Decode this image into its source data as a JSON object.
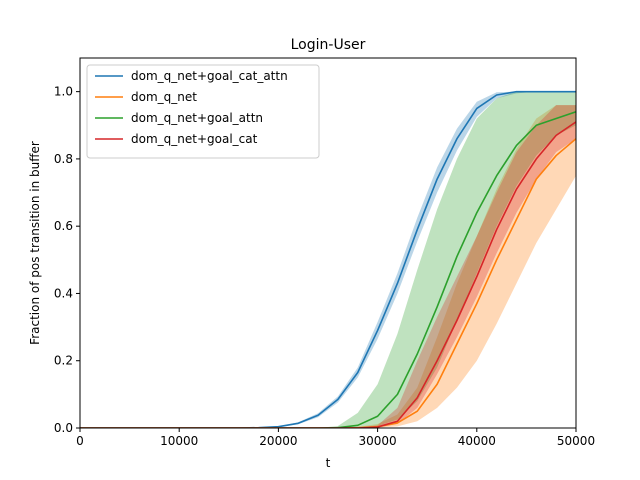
{
  "chart_data": {
    "type": "line",
    "title": "Login-User",
    "xlabel": "t",
    "ylabel": "Fraction of pos transition in buffer",
    "xlim": [
      0,
      50000
    ],
    "ylim": [
      0,
      1.1
    ],
    "xticks": [
      0,
      10000,
      20000,
      30000,
      40000,
      50000
    ],
    "xtick_labels": [
      "0",
      "10000",
      "20000",
      "30000",
      "40000",
      "50000"
    ],
    "yticks": [
      0.0,
      0.2,
      0.4,
      0.6,
      0.8,
      1.0
    ],
    "ytick_labels": [
      "0.0",
      "0.2",
      "0.4",
      "0.6",
      "0.8",
      "1.0"
    ],
    "grid": false,
    "legend_position": "top-left",
    "x": [
      0,
      2000,
      4000,
      6000,
      8000,
      10000,
      12000,
      14000,
      16000,
      18000,
      20000,
      22000,
      24000,
      26000,
      28000,
      30000,
      32000,
      34000,
      36000,
      38000,
      40000,
      42000,
      44000,
      46000,
      48000,
      50000
    ],
    "series": [
      {
        "name": "dom_q_net+goal_cat_attn",
        "color": "#1f77b4",
        "values": [
          0,
          0,
          0,
          0,
          0,
          0,
          0,
          0,
          0,
          0.001,
          0.004,
          0.014,
          0.038,
          0.085,
          0.165,
          0.29,
          0.43,
          0.59,
          0.74,
          0.86,
          0.95,
          0.99,
          1.0,
          1.0,
          1.0,
          1.0
        ],
        "lower": [
          0,
          0,
          0,
          0,
          0,
          0,
          0,
          0,
          0,
          0.001,
          0.003,
          0.011,
          0.032,
          0.076,
          0.15,
          0.265,
          0.4,
          0.555,
          0.7,
          0.825,
          0.925,
          0.98,
          0.995,
          1.0,
          1.0,
          1.0
        ],
        "upper": [
          0,
          0,
          0,
          0,
          0,
          0,
          0,
          0,
          0,
          0.001,
          0.005,
          0.017,
          0.044,
          0.094,
          0.18,
          0.315,
          0.46,
          0.625,
          0.775,
          0.89,
          0.97,
          0.998,
          1.0,
          1.0,
          1.0,
          1.0
        ]
      },
      {
        "name": "dom_q_net",
        "color": "#ff7f0e",
        "values": [
          0,
          0,
          0,
          0,
          0,
          0,
          0,
          0,
          0,
          0,
          0,
          0,
          0,
          0,
          0.001,
          0.004,
          0.015,
          0.05,
          0.13,
          0.25,
          0.37,
          0.5,
          0.62,
          0.74,
          0.81,
          0.86
        ],
        "lower": [
          0,
          0,
          0,
          0,
          0,
          0,
          0,
          0,
          0,
          0,
          0,
          0,
          0,
          0,
          0,
          0.001,
          0.005,
          0.02,
          0.06,
          0.12,
          0.2,
          0.31,
          0.43,
          0.55,
          0.65,
          0.75
        ],
        "upper": [
          0,
          0,
          0,
          0,
          0,
          0,
          0,
          0,
          0,
          0,
          0,
          0,
          0,
          0,
          0.003,
          0.012,
          0.04,
          0.12,
          0.27,
          0.43,
          0.57,
          0.71,
          0.83,
          0.92,
          0.96,
          0.96
        ]
      },
      {
        "name": "dom_q_net+goal_attn",
        "color": "#2ca02c",
        "values": [
          0,
          0,
          0,
          0,
          0,
          0,
          0,
          0,
          0,
          0,
          0,
          0,
          0,
          0.001,
          0.008,
          0.035,
          0.1,
          0.22,
          0.36,
          0.51,
          0.64,
          0.75,
          0.84,
          0.9,
          0.92,
          0.94
        ],
        "lower": [
          0,
          0,
          0,
          0,
          0,
          0,
          0,
          0,
          0,
          0,
          0,
          0,
          0,
          0,
          0.001,
          0.006,
          0.025,
          0.08,
          0.18,
          0.32,
          0.46,
          0.6,
          0.72,
          0.81,
          0.87,
          0.9
        ],
        "upper": [
          0,
          0,
          0,
          0,
          0,
          0,
          0,
          0,
          0,
          0,
          0,
          0,
          0,
          0.006,
          0.045,
          0.13,
          0.28,
          0.47,
          0.65,
          0.8,
          0.92,
          0.98,
          1.0,
          1.0,
          1.0,
          1.0
        ]
      },
      {
        "name": "dom_q_net+goal_cat",
        "color": "#d62728",
        "values": [
          0,
          0,
          0,
          0,
          0,
          0,
          0,
          0,
          0,
          0,
          0,
          0,
          0,
          0,
          0,
          0.003,
          0.02,
          0.09,
          0.2,
          0.32,
          0.45,
          0.59,
          0.71,
          0.8,
          0.87,
          0.91
        ],
        "lower": [
          0,
          0,
          0,
          0,
          0,
          0,
          0,
          0,
          0,
          0,
          0,
          0,
          0,
          0,
          0,
          0.001,
          0.012,
          0.06,
          0.16,
          0.27,
          0.39,
          0.52,
          0.64,
          0.74,
          0.82,
          0.86
        ],
        "upper": [
          0,
          0,
          0,
          0,
          0,
          0,
          0,
          0,
          0,
          0,
          0,
          0,
          0,
          0,
          0,
          0.008,
          0.06,
          0.2,
          0.33,
          0.45,
          0.57,
          0.7,
          0.82,
          0.9,
          0.96,
          0.96
        ]
      }
    ]
  }
}
